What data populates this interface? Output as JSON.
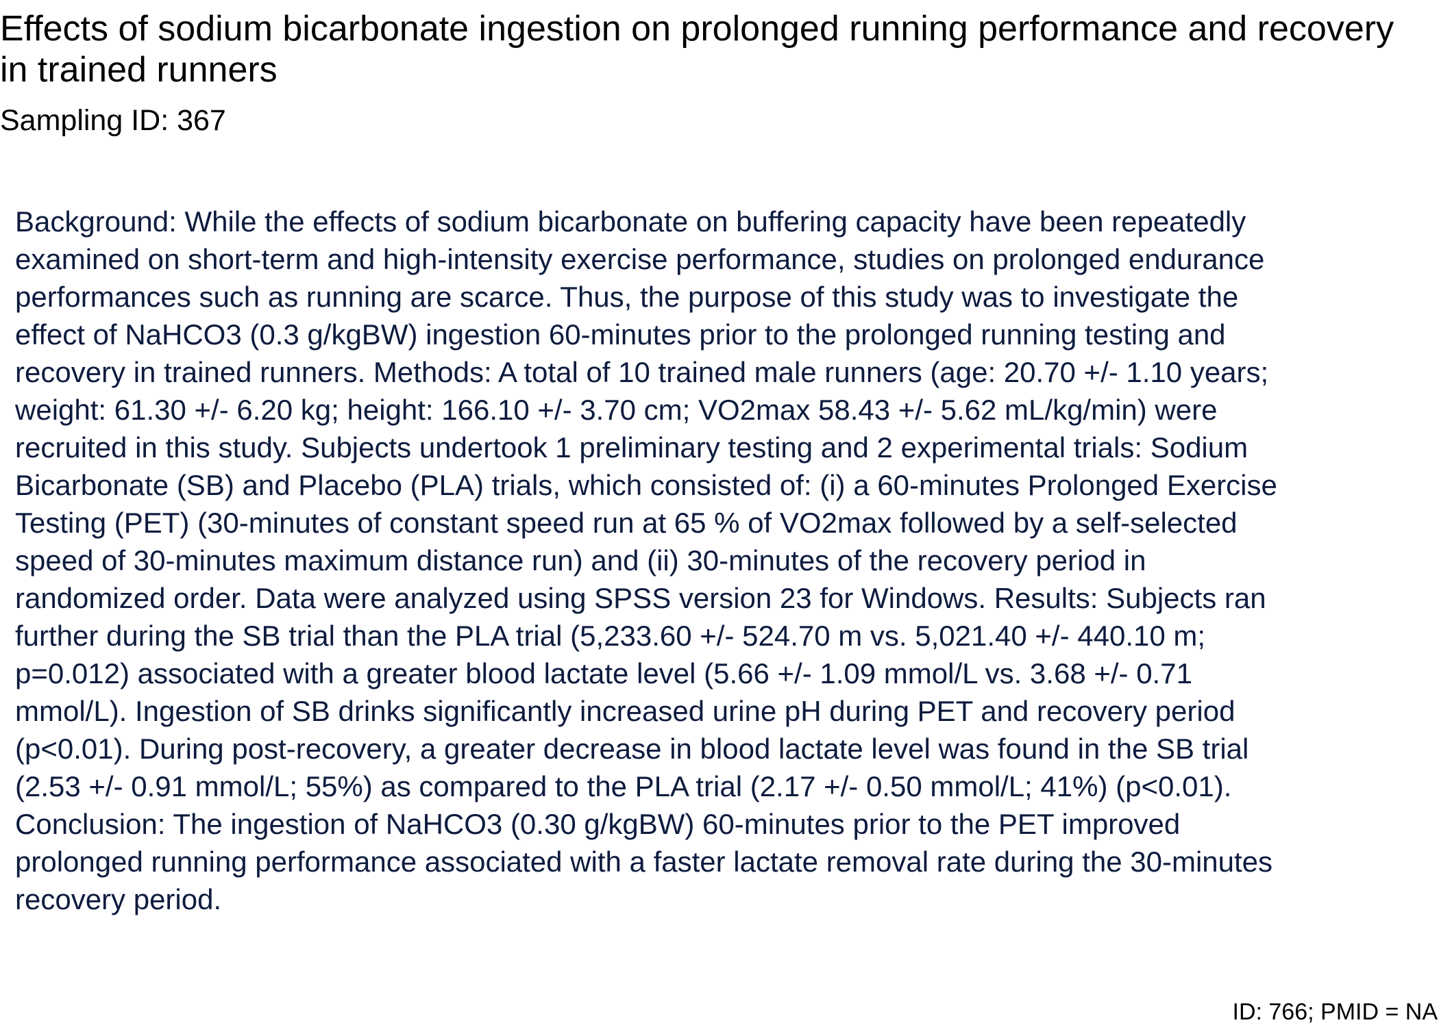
{
  "document": {
    "title": "Effects of sodium bicarbonate ingestion on prolonged running performance and recovery in trained runners",
    "sampling_id": "Sampling ID: 367",
    "abstract_lines": [
      "Background: While the effects of sodium bicarbonate on buffering capacity have been repeatedly",
      "examined on short-term and high-intensity exercise performance, studies on prolonged endurance",
      "performances such as running are scarce. Thus, the purpose of this study was to investigate the",
      "effect of NaHCO3 (0.3 g/kgBW) ingestion 60-minutes prior to the prolonged running testing and",
      "recovery in trained runners. Methods: A total of 10 trained male runners (age: 20.70 +/- 1.10 years;",
      "weight: 61.30 +/- 6.20 kg; height: 166.10 +/- 3.70 cm; VO2max 58.43 +/- 5.62 mL/kg/min) were",
      "recruited in this study. Subjects undertook 1 preliminary testing and 2 experimental trials: Sodium",
      "Bicarbonate (SB) and Placebo (PLA) trials, which consisted of: (i) a 60-minutes Prolonged Exercise",
      "Testing (PET) (30-minutes of constant speed run at 65 % of VO2max followed by a self-selected",
      "speed of 30-minutes maximum distance run) and (ii) 30-minutes of the recovery period in",
      "randomized order. Data were analyzed using SPSS version 23 for Windows. Results: Subjects ran",
      "further during the SB trial than the PLA trial (5,233.60 +/- 524.70 m vs. 5,021.40 +/- 440.10 m;",
      "p=0.012) associated with a greater blood lactate level (5.66 +/- 1.09 mmol/L vs. 3.68 +/- 0.71",
      "mmol/L). Ingestion of SB drinks significantly increased urine pH during PET and recovery period",
      "(p<0.01). During post-recovery, a greater decrease in blood lactate level was found in the SB trial",
      "(2.53 +/- 0.91 mmol/L; 55%) as compared to the PLA trial (2.17 +/- 0.50 mmol/L; 41%) (p<0.01).",
      "Conclusion: The ingestion of NaHCO3 (0.30 g/kgBW) 60-minutes prior to the PET improved",
      "prolonged running performance associated with a faster lactate removal rate during the 30-minutes",
      "recovery period."
    ],
    "footer_id": "ID: 766; PMID = NA"
  }
}
